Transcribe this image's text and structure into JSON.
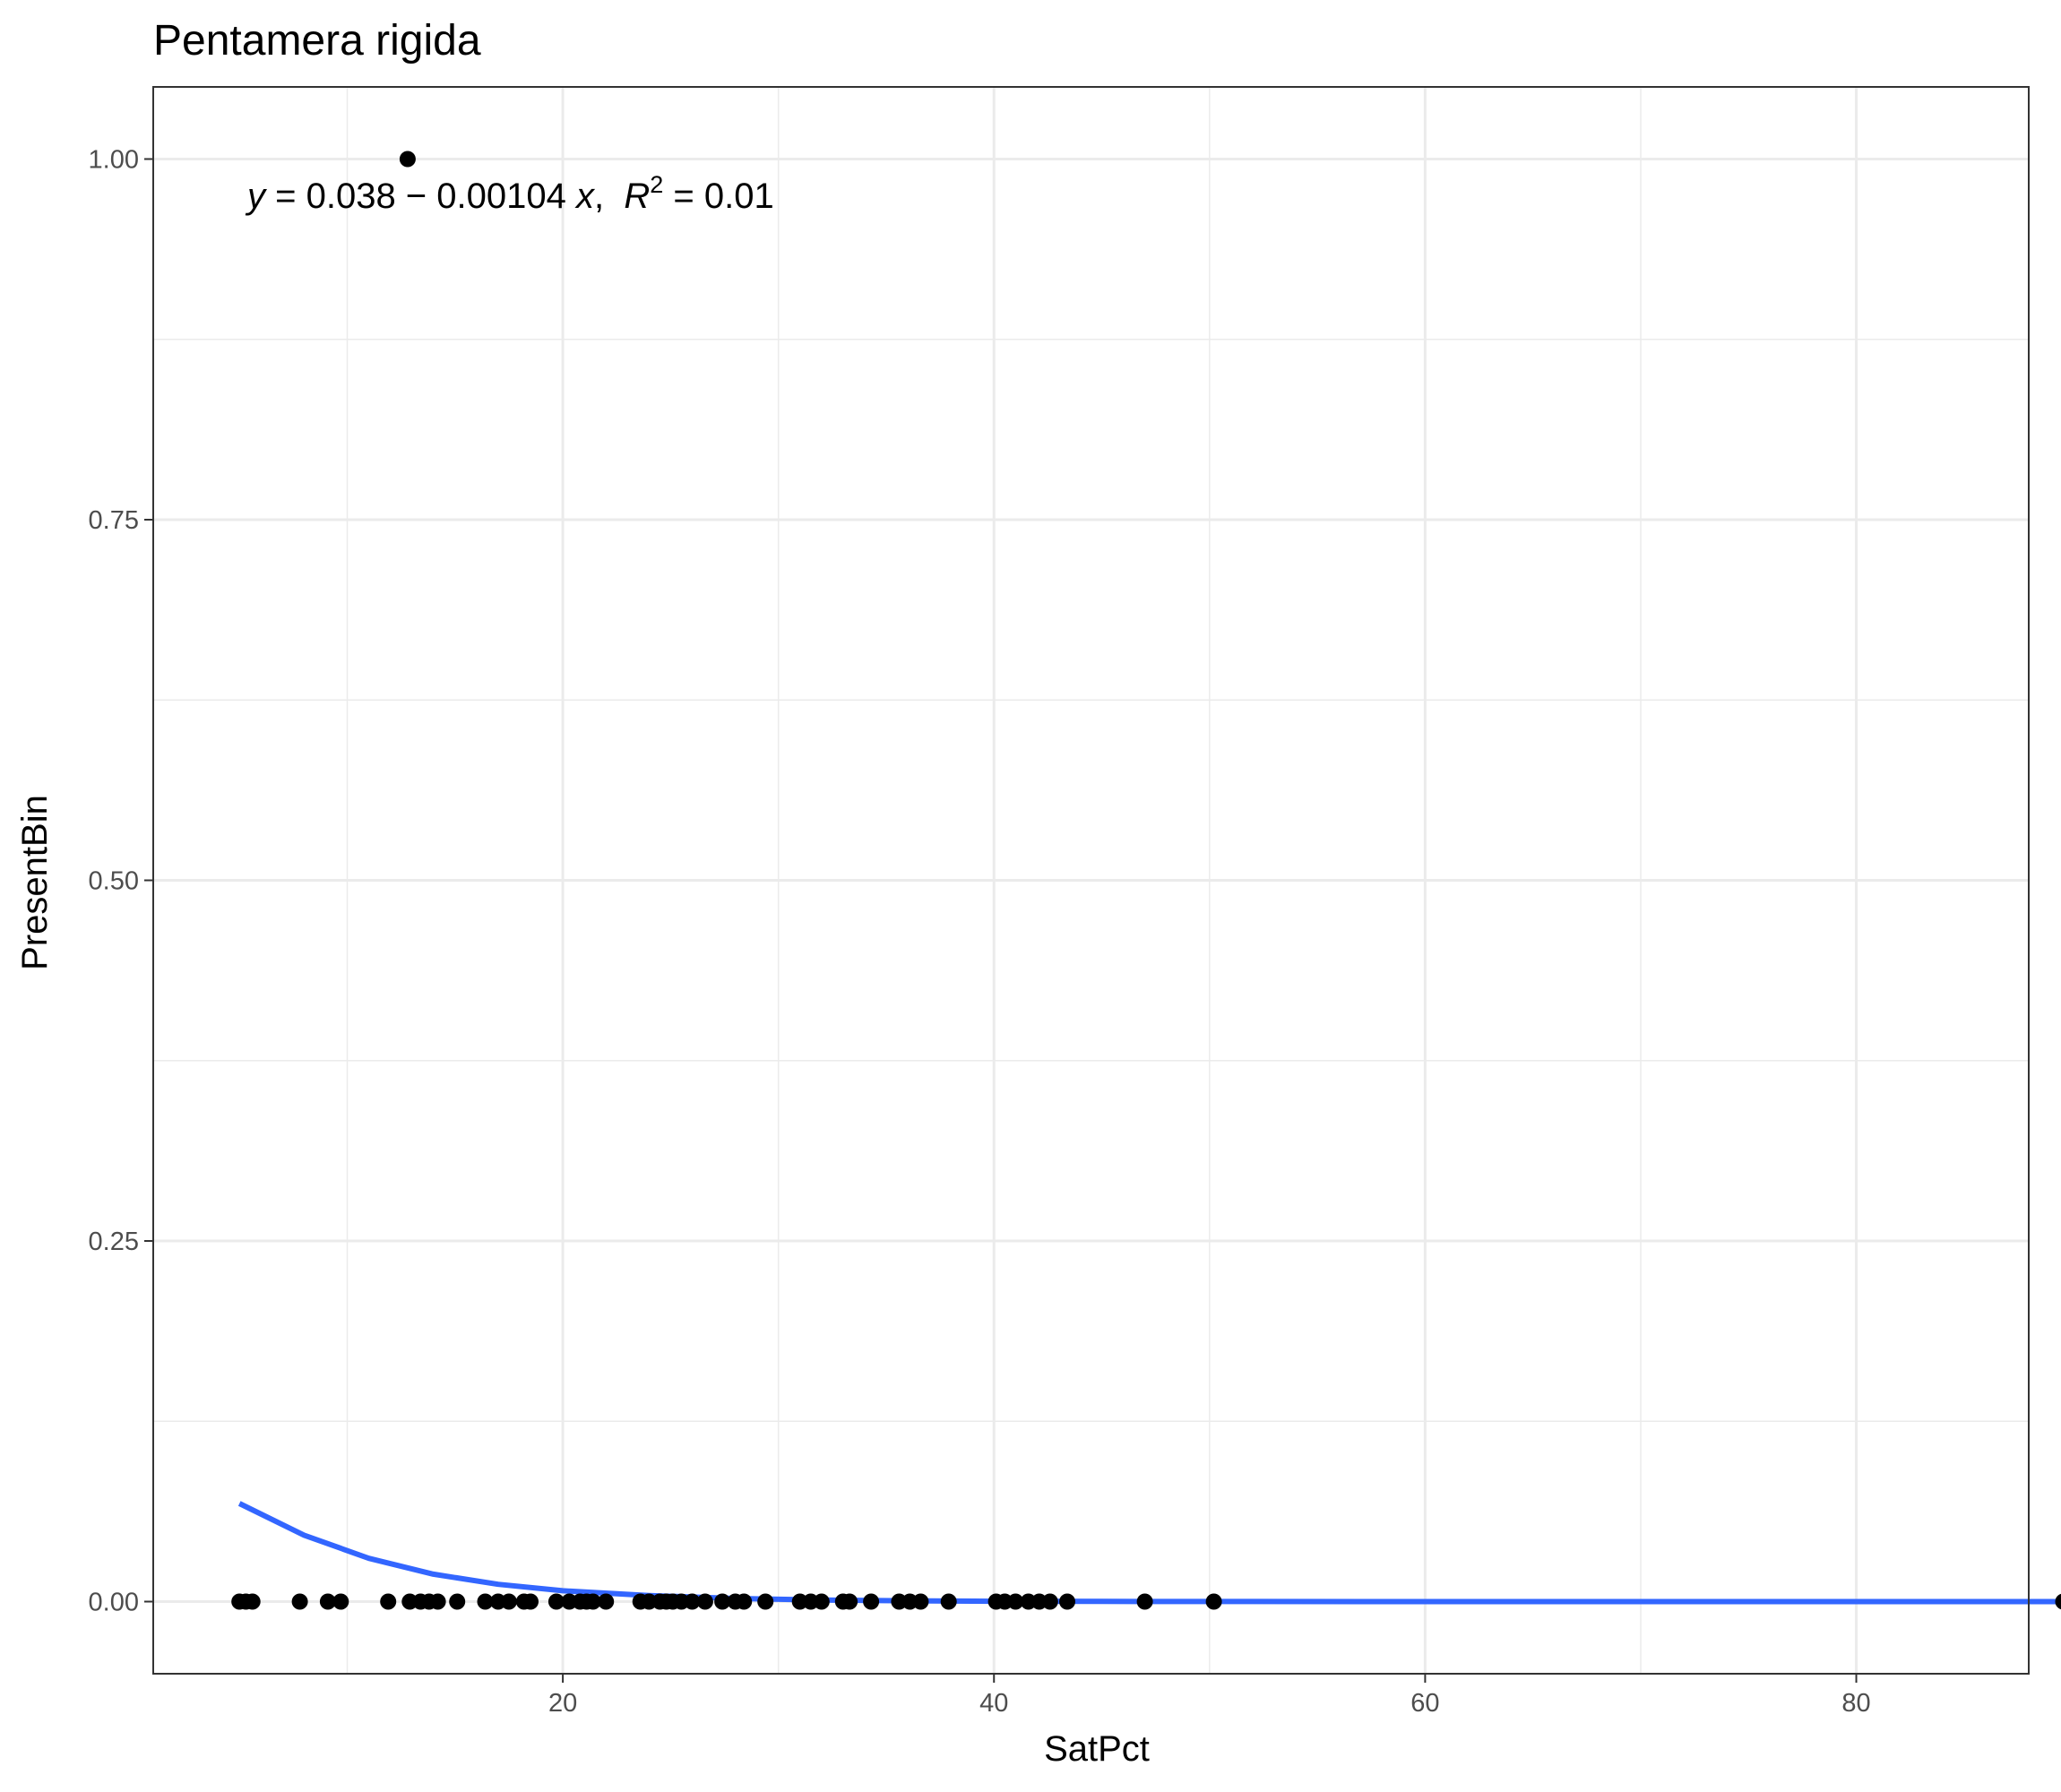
{
  "chart_data": {
    "type": "scatter",
    "title": "Pentamera rigida",
    "xlabel": "SatPct",
    "ylabel": "PresentBin",
    "xlim": [
      1.0,
      88.0
    ],
    "ylim": [
      -0.05,
      1.05
    ],
    "x_ticks": [
      20,
      40,
      60,
      80
    ],
    "y_ticks": [
      0.0,
      0.25,
      0.5,
      0.75,
      1.0
    ],
    "x_tick_labels": [
      "20",
      "40",
      "60",
      "80"
    ],
    "y_tick_labels": [
      "0.00",
      "0.25",
      "0.50",
      "0.75",
      "1.00"
    ],
    "grid": true,
    "annotation": {
      "y_var": "y",
      "eq_rest": " = 0.038 − 0.00104 ",
      "x_var": "x",
      "sep": ",  ",
      "r_var": "R",
      "r_sup": "2",
      "r_rest": " = 0.01"
    },
    "series": [
      {
        "points": [
          [
            12.8,
            1
          ],
          [
            5.0,
            0
          ],
          [
            5.3,
            0
          ],
          [
            5.6,
            0
          ],
          [
            7.8,
            0
          ],
          [
            9.1,
            0
          ],
          [
            9.7,
            0
          ],
          [
            11.9,
            0
          ],
          [
            12.9,
            0
          ],
          [
            13.4,
            0
          ],
          [
            13.8,
            0
          ],
          [
            14.2,
            0
          ],
          [
            15.1,
            0
          ],
          [
            16.4,
            0
          ],
          [
            17.0,
            0
          ],
          [
            17.5,
            0
          ],
          [
            18.2,
            0
          ],
          [
            18.5,
            0
          ],
          [
            19.7,
            0
          ],
          [
            20.3,
            0
          ],
          [
            20.8,
            0
          ],
          [
            21.1,
            0
          ],
          [
            21.4,
            0
          ],
          [
            22.0,
            0
          ],
          [
            23.6,
            0
          ],
          [
            24.0,
            0
          ],
          [
            24.5,
            0
          ],
          [
            24.8,
            0
          ],
          [
            25.1,
            0
          ],
          [
            25.5,
            0
          ],
          [
            26.0,
            0
          ],
          [
            26.6,
            0
          ],
          [
            27.4,
            0
          ],
          [
            28.0,
            0
          ],
          [
            28.4,
            0
          ],
          [
            29.4,
            0
          ],
          [
            31.0,
            0
          ],
          [
            31.5,
            0
          ],
          [
            32.0,
            0
          ],
          [
            33.0,
            0
          ],
          [
            33.3,
            0
          ],
          [
            34.3,
            0
          ],
          [
            35.6,
            0
          ],
          [
            36.1,
            0
          ],
          [
            36.6,
            0
          ],
          [
            37.9,
            0
          ],
          [
            40.1,
            0
          ],
          [
            40.5,
            0
          ],
          [
            41.0,
            0
          ],
          [
            41.6,
            0
          ],
          [
            42.1,
            0
          ],
          [
            42.6,
            0
          ],
          [
            43.4,
            0
          ],
          [
            47.0,
            0
          ],
          [
            50.2,
            0
          ],
          [
            89.6,
            0
          ]
        ]
      },
      {
        "type": "line",
        "color": "#3366ff",
        "points": [
          [
            5.0,
            0.068
          ],
          [
            8,
            0.046
          ],
          [
            11,
            0.03
          ],
          [
            14,
            0.019
          ],
          [
            17,
            0.012
          ],
          [
            20,
            0.0075
          ],
          [
            24,
            0.0042
          ],
          [
            28,
            0.0022
          ],
          [
            32,
            0.0011
          ],
          [
            36,
            0.00055
          ],
          [
            40,
            0.00025
          ],
          [
            45,
            0.0001
          ],
          [
            50,
            4e-05
          ],
          [
            60,
            1e-05
          ],
          [
            70,
            0.0
          ],
          [
            80,
            0.0
          ],
          [
            89.6,
            0.0
          ]
        ]
      }
    ]
  }
}
